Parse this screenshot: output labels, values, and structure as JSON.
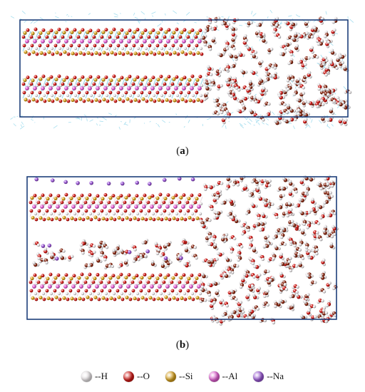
{
  "colors": {
    "H": "#ece8ea",
    "O": "#d21a16",
    "Si": "#d9a21c",
    "Al": "#e35fd3",
    "Na": "#9b59d6",
    "box": "#1d3f7a",
    "bond": "#7fd0e8",
    "oh_brown": "#8b2a14"
  },
  "panels": [
    {
      "id": "a",
      "caption_open": "(",
      "caption_label": "a",
      "caption_close": ")"
    },
    {
      "id": "b",
      "caption_open": "(",
      "caption_label": "b",
      "caption_close": ")"
    }
  ],
  "legend": [
    {
      "key": "H",
      "label": "--H",
      "icon": "hydrogen-atom-icon"
    },
    {
      "key": "O",
      "label": "--O",
      "icon": "oxygen-atom-icon"
    },
    {
      "key": "Si",
      "label": "--Si",
      "icon": "silicon-atom-icon"
    },
    {
      "key": "Al",
      "label": "--Al",
      "icon": "aluminum-atom-icon"
    },
    {
      "key": "Na",
      "label": "--Na",
      "icon": "sodium-atom-icon"
    }
  ]
}
